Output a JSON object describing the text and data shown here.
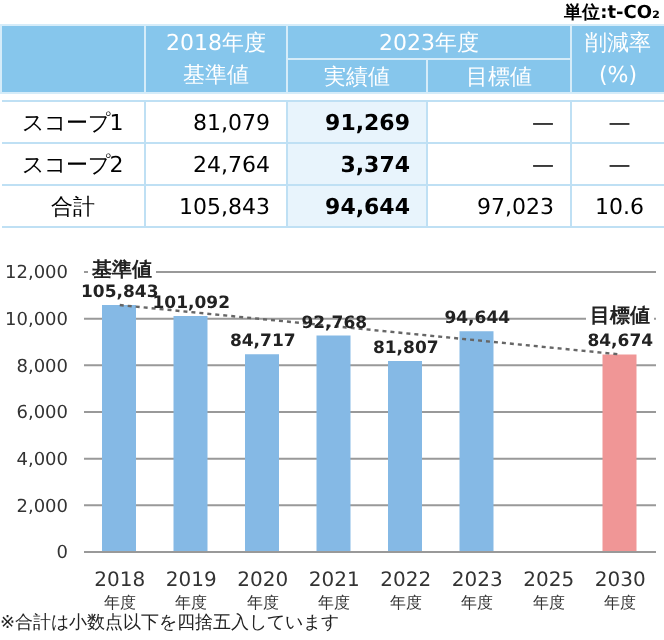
{
  "chart_data": [
    {
      "type": "other",
      "title": "単位:t-CO₂",
      "annotations": [
        "2023年度"
      ],
      "categories": [
        "2018年度基準値",
        "実績値",
        "目標値",
        "削減率(%)"
      ],
      "y_categories": [
        "スコープ1",
        "スコープ2",
        "合計"
      ],
      "cell_labels": [
        [
          "81,079",
          "91,269",
          "—",
          "—"
        ],
        [
          "24,764",
          "3,374",
          "—",
          "—"
        ],
        [
          "105,843",
          "94,644",
          "97,023",
          "10.6"
        ]
      ]
    },
    {
      "type": "bar",
      "categories": [
        "2018$_{年度}$",
        "2019$_{年度}$",
        "2020$_{年度}$",
        "2021$_{年度}$",
        "2022$_{年度}$",
        "2023$_{年度}$",
        "2025$_{年度}$",
        "2030$_{年度}$"
      ],
      "series": [
        {
          "type": "bar",
          "values": [
            10584,
            10109,
            8472,
            9277,
            8181,
            9464,
            null,
            8467
          ],
          "colors": [
            "#85b9e5",
            "#85b9e5",
            "#85b9e5",
            "#85b9e5",
            "#85b9e5",
            "#85b9e5",
            "#85b9e5",
            "#f09696"
          ]
        },
        {
          "type": "line",
          "values": [
            10584,
            null,
            null,
            null,
            null,
            null,
            null,
            8467
          ],
          "color": "#666666",
          "line_style": "dotted"
        }
      ],
      "ylim": [
        0,
        12000
      ],
      "yticks": [
        0,
        {
          "value": 2000,
          "label": "2,000"
        },
        {
          "value": 4000,
          "label": "4,000"
        },
        {
          "value": 6000,
          "label": "6,000"
        },
        {
          "value": 8000,
          "label": "8,000"
        },
        {
          "value": 10000,
          "label": "10,000"
        },
        {
          "value": 12000,
          "label": "12,000"
        }
      ],
      "grid": "y",
      "annotations": [
        "基準値",
        "目標値",
        {
          "text": "105,843",
          "x": "2018$_{年度}$",
          "y": 10584
        },
        {
          "text": "101,092",
          "x": "2019$_{年度}$",
          "y": 10109
        },
        {
          "text": "84,717",
          "x": "2020$_{年度}$",
          "y": 8472
        },
        {
          "text": "92,768",
          "x": "2021$_{年度}$",
          "y": 9277
        },
        {
          "text": "81,807",
          "x": "2022$_{年度}$",
          "y": 8181
        },
        {
          "text": "94,644",
          "x": "2023$_{年度}$",
          "y": 9464
        },
        {
          "text": "84,674",
          "x": "2030$_{年度}$",
          "y": 8467
        },
        "※合計は小数点以下を四捨五入しています"
      ]
    }
  ]
}
